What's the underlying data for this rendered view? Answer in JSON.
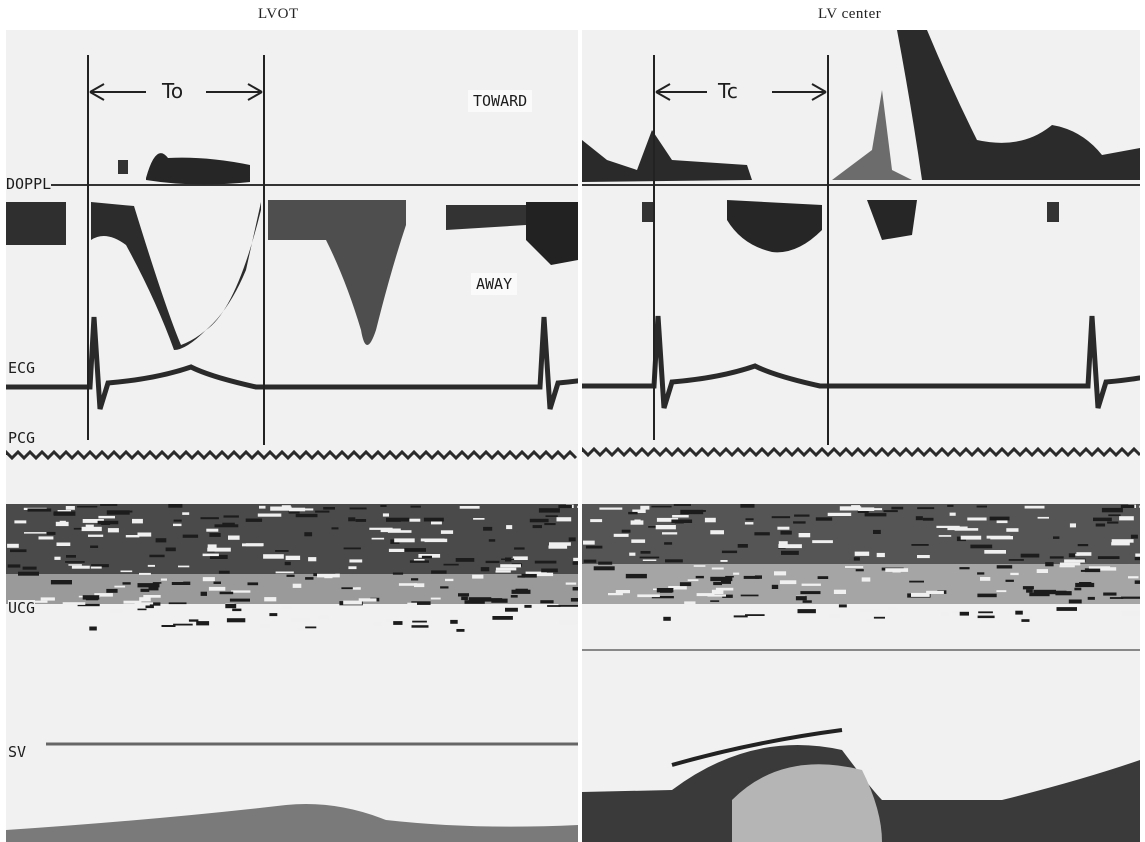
{
  "headers": {
    "left": "LVOT",
    "right": "LV center"
  },
  "left_panel": {
    "interval_label": "To",
    "toward_label": "TOWARD",
    "away_label": "AWAY",
    "trace_labels": {
      "doppler": "DOPPL",
      "ecg": "ECG",
      "pcg": "PCG",
      "ucg": "UCG",
      "sv": "SV"
    }
  },
  "right_panel": {
    "interval_label": "Tc"
  },
  "colors": {
    "background": "#f1f1f1",
    "trace": "#2a2a2a"
  }
}
